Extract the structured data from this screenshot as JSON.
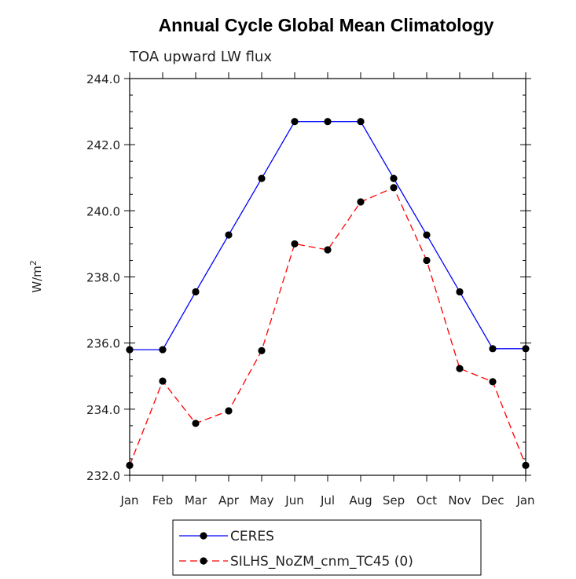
{
  "chart_data": {
    "type": "line",
    "title": "Annual Cycle Global Mean Climatology",
    "subtitle": "TOA upward LW flux",
    "ylabel": "W/m",
    "ylabel_superscript": "2",
    "xlabel": "",
    "categories": [
      "Jan",
      "Feb",
      "Mar",
      "Apr",
      "May",
      "Jun",
      "Jul",
      "Aug",
      "Sep",
      "Oct",
      "Nov",
      "Dec",
      "Jan"
    ],
    "ylim": [
      232.0,
      244.0
    ],
    "yticks": [
      "232.0",
      "234.0",
      "236.0",
      "238.0",
      "240.0",
      "242.0",
      "244.0"
    ],
    "grid": false,
    "legend_position": "bottom",
    "series": [
      {
        "name": "CERES",
        "color": "#0000ff",
        "dash": "solid",
        "values": [
          235.8,
          235.8,
          237.55,
          239.27,
          240.98,
          242.7,
          242.7,
          242.7,
          240.98,
          239.27,
          237.55,
          235.83,
          235.83
        ]
      },
      {
        "name": "SILHS_NoZM_cnm_TC45 (0)",
        "color": "#ff0000",
        "dash": "dashed",
        "values": [
          232.3,
          234.85,
          233.57,
          233.95,
          235.77,
          239.0,
          238.82,
          240.27,
          240.7,
          238.5,
          235.23,
          234.83,
          232.3
        ]
      }
    ]
  }
}
